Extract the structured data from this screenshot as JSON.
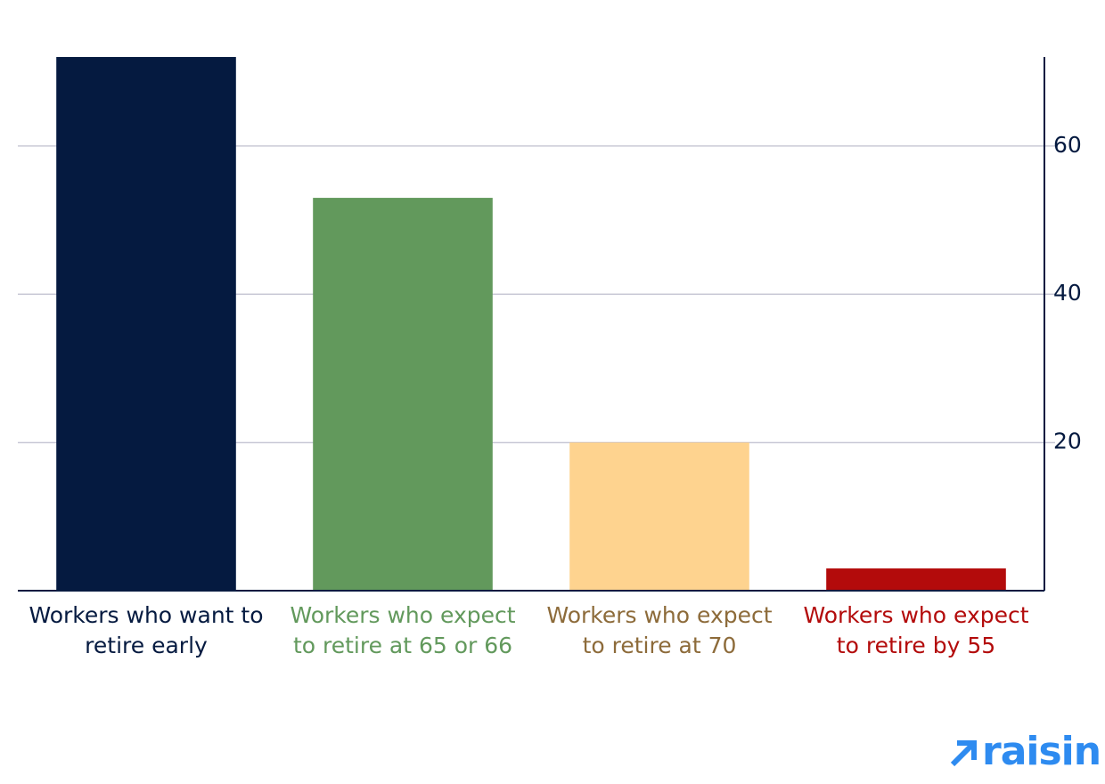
{
  "chart_data": {
    "type": "bar",
    "categories": [
      "Workers who want to retire early",
      "Workers who expect to retire at 65 or 66",
      "Workers who expect to retire at 70",
      "Workers who expect to retire by 55"
    ],
    "values": [
      72,
      53,
      20,
      3
    ],
    "colors": [
      "#051a40",
      "#62995c",
      "#fed38f",
      "#b30b0b"
    ],
    "label_colors": [
      "#051a40",
      "#62995c",
      "#8d6b3a",
      "#b30b0b"
    ],
    "ylim": [
      0,
      72
    ],
    "yticks": [
      20,
      40,
      60
    ],
    "grid": true,
    "y_axis_side": "right"
  },
  "logo": "raisin"
}
